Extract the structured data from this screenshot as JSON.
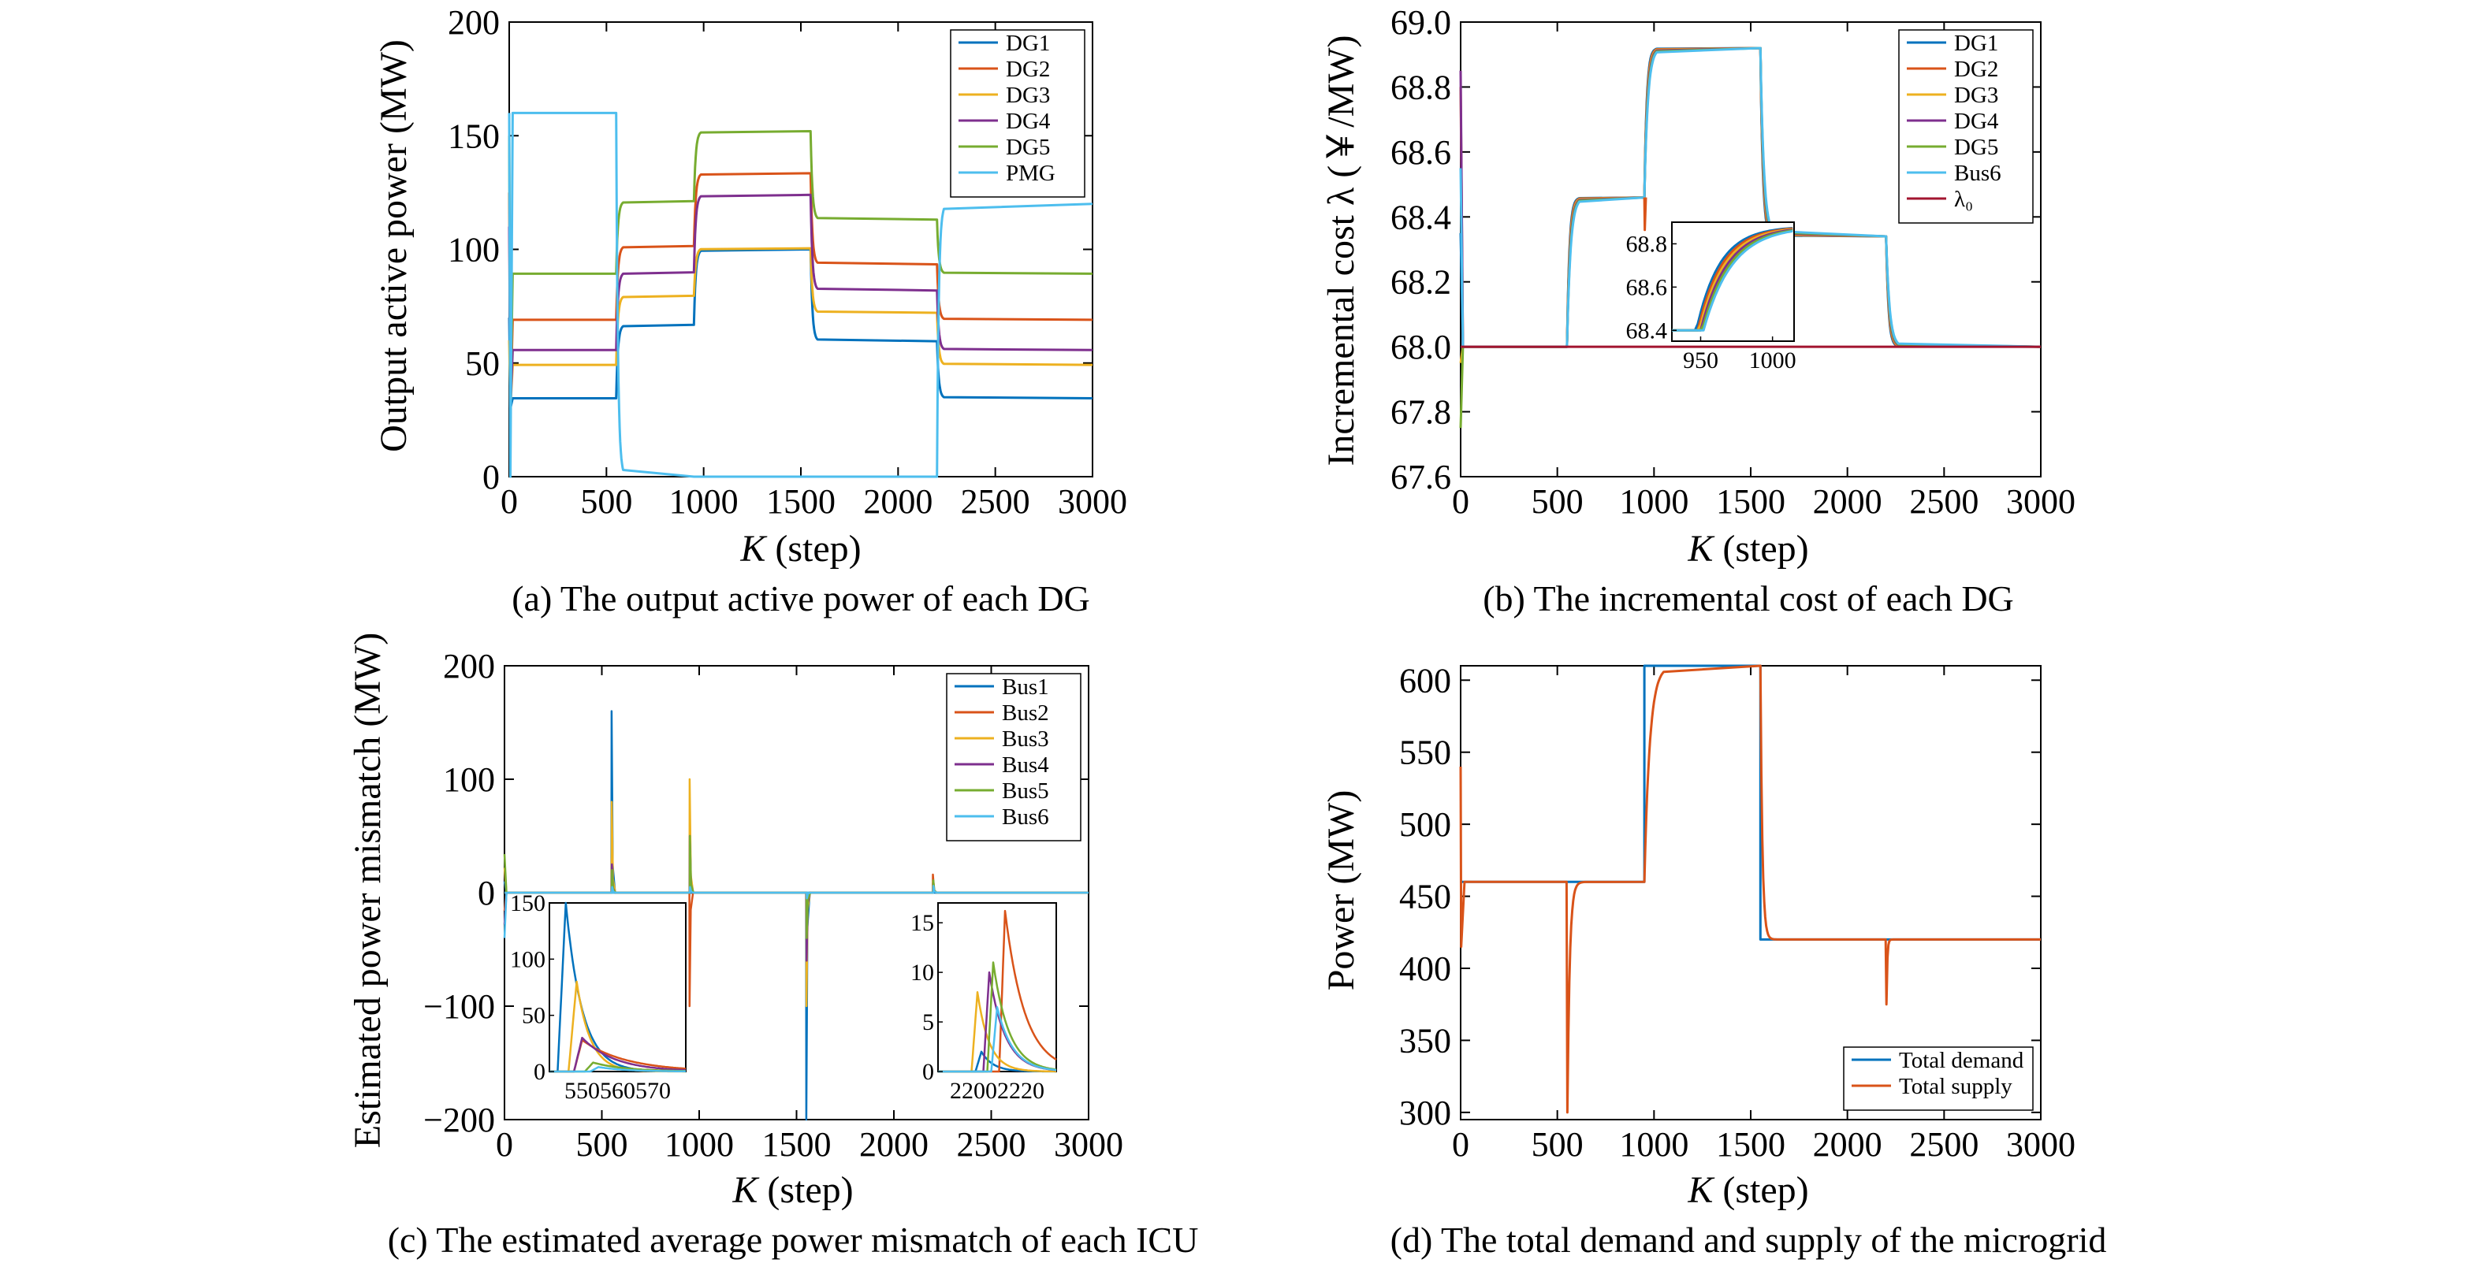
{
  "chart_data": [
    {
      "type": "line",
      "panel": "a",
      "caption": "(a) The output active power of each DG",
      "xlabel_var": "K",
      "xlabel_unit": " (step)",
      "ylabel": "Output active power (MW)",
      "xlim": [
        0,
        3000
      ],
      "ylim": [
        0,
        200
      ],
      "xticks": [
        0,
        500,
        1000,
        1500,
        2000,
        2500,
        3000
      ],
      "yticks": [
        0,
        50,
        100,
        150,
        200
      ],
      "legend_position": "top-right",
      "series": [
        {
          "name": "DG1",
          "color": "#0072BD",
          "values": [
            34.5,
            66.8,
            100.0,
            59.6,
            34.5
          ],
          "transient": [
            70,
            30
          ]
        },
        {
          "name": "DG2",
          "color": "#D95319",
          "values": [
            69.0,
            101.5,
            133.5,
            93.4,
            69.0
          ],
          "transient": [
            125,
            30
          ]
        },
        {
          "name": "DG3",
          "color": "#EDB120",
          "values": [
            49.2,
            79.6,
            100.5,
            72.1,
            49.2
          ],
          "transient": [
            60,
            30
          ]
        },
        {
          "name": "DG4",
          "color": "#7E2F8E",
          "values": [
            55.7,
            89.9,
            124.0,
            81.9,
            55.7
          ],
          "transient": [
            110,
            30
          ]
        },
        {
          "name": "DG5",
          "color": "#77AC30",
          "values": [
            89.3,
            121.2,
            152.0,
            113.1,
            89.3
          ],
          "transient": [
            150,
            30
          ]
        },
        {
          "name": "PMG",
          "color": "#4DBEEE",
          "values": [
            160.0,
            0.0,
            0.0,
            0.0,
            120.0
          ],
          "transient": [
            160,
            0
          ]
        }
      ],
      "breakpoints": [
        0,
        550,
        950,
        1550,
        2200,
        3000
      ]
    },
    {
      "type": "line",
      "panel": "b",
      "caption": "(b) The incremental cost of each DG",
      "xlabel_var": "K",
      "xlabel_unit": " (step)",
      "ylabel": "Incremental cost λ (￥/MW)",
      "xlim": [
        0,
        3000
      ],
      "ylim": [
        67.6,
        69.0
      ],
      "xticks": [
        0,
        500,
        1000,
        1500,
        2000,
        2500,
        3000
      ],
      "yticks": [
        67.6,
        67.8,
        68.0,
        68.2,
        68.4,
        68.6,
        68.8,
        69.0
      ],
      "legend_position": "top-right",
      "series": [
        {
          "name": "DG1",
          "color": "#0072BD"
        },
        {
          "name": "DG2",
          "color": "#D95319"
        },
        {
          "name": "DG3",
          "color": "#EDB120"
        },
        {
          "name": "DG4",
          "color": "#7E2F8E"
        },
        {
          "name": "DG5",
          "color": "#77AC30"
        },
        {
          "name": "Bus6",
          "color": "#4DBEEE"
        },
        {
          "name": "λ₀",
          "color": "#A2142F"
        }
      ],
      "segments": [
        {
          "x": [
            0,
            550
          ],
          "value": 68.0
        },
        {
          "x": [
            550,
            950
          ],
          "value": 68.46
        },
        {
          "x": [
            950,
            1550
          ],
          "value": 68.92
        },
        {
          "x": [
            1550,
            2200
          ],
          "value": 68.34
        },
        {
          "x": [
            2200,
            3000
          ],
          "value": 68.0
        }
      ],
      "lambda0": 68.0,
      "inset": {
        "xlim": [
          930,
          1015
        ],
        "ylim": [
          68.35,
          68.9
        ],
        "xticks": [
          950,
          1000
        ],
        "yticks": [
          68.4,
          68.6,
          68.8
        ]
      }
    },
    {
      "type": "line",
      "panel": "c",
      "caption": "(c) The estimated average power mismatch of each ICU",
      "xlabel_var": "K",
      "xlabel_unit": " (step)",
      "ylabel": "Estimated power mismatch (MW)",
      "xlim": [
        0,
        3000
      ],
      "ylim": [
        -200,
        200
      ],
      "xticks": [
        0,
        500,
        1000,
        1500,
        2000,
        2500,
        3000
      ],
      "yticks": [
        -200,
        -100,
        0,
        100,
        200
      ],
      "legend_position": "top-right",
      "series": [
        {
          "name": "Bus1",
          "color": "#0072BD",
          "spikes": [
            [
              550,
              160
            ],
            [
              950,
              0
            ],
            [
              1550,
              -200
            ],
            [
              2200,
              2
            ]
          ]
        },
        {
          "name": "Bus2",
          "color": "#D95319",
          "spikes": [
            [
              550,
              30
            ],
            [
              950,
              -100
            ],
            [
              1550,
              -20
            ],
            [
              2200,
              16
            ]
          ]
        },
        {
          "name": "Bus3",
          "color": "#EDB120",
          "spikes": [
            [
              550,
              80
            ],
            [
              950,
              100
            ],
            [
              1550,
              -100
            ],
            [
              2200,
              10
            ]
          ]
        },
        {
          "name": "Bus4",
          "color": "#7E2F8E",
          "spikes": [
            [
              550,
              25
            ],
            [
              950,
              50
            ],
            [
              1550,
              -60
            ],
            [
              2200,
              8
            ]
          ]
        },
        {
          "name": "Bus5",
          "color": "#77AC30",
          "spikes": [
            [
              550,
              20
            ],
            [
              950,
              50
            ],
            [
              1550,
              -40
            ],
            [
              2200,
              11
            ]
          ]
        },
        {
          "name": "Bus6",
          "color": "#4DBEEE",
          "spikes": [
            [
              550,
              5
            ],
            [
              950,
              5
            ],
            [
              1550,
              -5
            ],
            [
              2200,
              6
            ]
          ]
        }
      ],
      "inset_left": {
        "xlim": [
          550,
          575
        ],
        "ylim": [
          0,
          150
        ],
        "xtick_text": "550560570",
        "yticks": [
          0,
          50,
          100,
          150
        ]
      },
      "inset_right": {
        "xlim": [
          2195,
          2225
        ],
        "ylim": [
          0,
          17
        ],
        "xtick_text": "22002220",
        "yticks": [
          0,
          5,
          10,
          15
        ]
      }
    },
    {
      "type": "line",
      "panel": "d",
      "caption": "(d) The total demand and supply of the microgrid",
      "xlabel_var": "K",
      "xlabel_unit": " (step)",
      "ylabel": "Power (MW)",
      "xlim": [
        0,
        3000
      ],
      "ylim": [
        295,
        610
      ],
      "xticks": [
        0,
        500,
        1000,
        1500,
        2000,
        2500,
        3000
      ],
      "yticks": [
        300,
        350,
        400,
        450,
        500,
        550,
        600
      ],
      "legend_position": "bottom-right",
      "series": [
        {
          "name": "Total demand",
          "color": "#0072BD"
        },
        {
          "name": "Total supply",
          "color": "#D95319"
        }
      ],
      "demand": [
        {
          "x": [
            0,
            950
          ],
          "value": 460
        },
        {
          "x": [
            950,
            1550
          ],
          "value": 610
        },
        {
          "x": [
            1550,
            3000
          ],
          "value": 420
        }
      ],
      "supply_dips": [
        [
          0,
          415
        ],
        [
          550,
          300
        ],
        [
          950,
          460
        ],
        [
          1550,
          610
        ],
        [
          2200,
          375
        ]
      ]
    }
  ]
}
